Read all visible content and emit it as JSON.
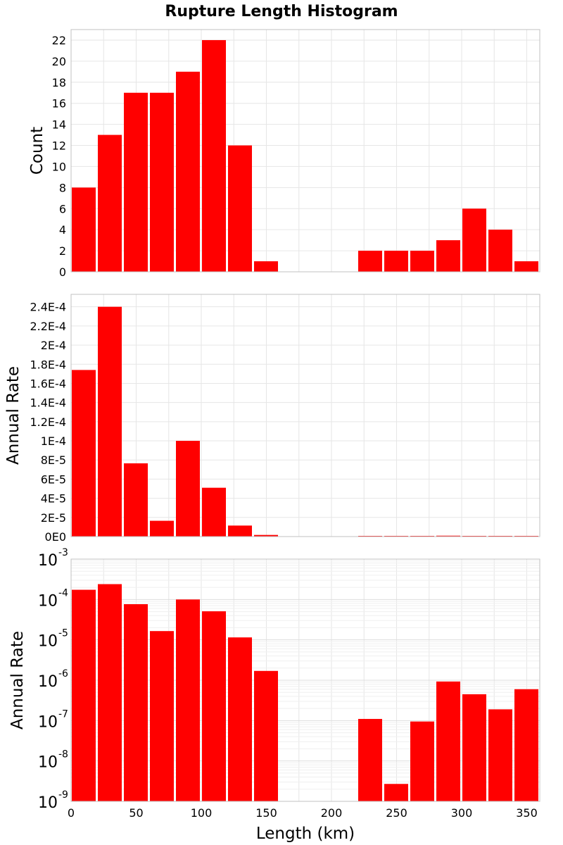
{
  "chart_data": [
    {
      "type": "bar",
      "title": "Rupture Length Histogram",
      "ylabel": "Count",
      "x": [
        10,
        30,
        50,
        70,
        90,
        110,
        130,
        150,
        170,
        190,
        210,
        230,
        250,
        270,
        290,
        310,
        330,
        350
      ],
      "values": [
        8,
        13,
        17,
        17,
        19,
        22,
        12,
        1,
        0,
        0,
        0,
        2,
        2,
        2,
        3,
        6,
        4,
        1
      ],
      "xlim": [
        0,
        360
      ],
      "ylim": [
        0,
        23
      ],
      "yticks": [
        0,
        2,
        4,
        6,
        8,
        10,
        12,
        14,
        16,
        18,
        20,
        22
      ],
      "ytick_labels": [
        "0",
        "2",
        "4",
        "6",
        "8",
        "10",
        "12",
        "14",
        "16",
        "18",
        "20",
        "22"
      ],
      "grid": true
    },
    {
      "type": "bar",
      "ylabel": "Annual Rate",
      "x": [
        10,
        30,
        50,
        70,
        90,
        110,
        130,
        150,
        170,
        190,
        210,
        230,
        250,
        270,
        290,
        310,
        330,
        350
      ],
      "values": [
        0.000174,
        0.00024,
        7.65e-05,
        1.65e-05,
        0.0001,
        5.1e-05,
        1.15e-05,
        1.7e-06,
        0,
        0,
        0,
        1.1e-07,
        2.7e-09,
        9.5e-08,
        9.3e-07,
        4.5e-07,
        1.9e-07,
        6e-07
      ],
      "xlim": [
        0,
        360
      ],
      "ylim": [
        0,
        0.000253
      ],
      "yticks": [
        0,
        2e-05,
        4e-05,
        6e-05,
        8e-05,
        0.0001,
        0.00012,
        0.00014,
        0.00016,
        0.00018,
        0.0002,
        0.00022,
        0.00024
      ],
      "ytick_labels": [
        "0E0",
        "2E-5",
        "4E-5",
        "6E-5",
        "8E-5",
        "1E-4",
        "1.2E-4",
        "1.4E-4",
        "1.6E-4",
        "1.8E-4",
        "2E-4",
        "2.2E-4",
        "2.4E-4"
      ],
      "grid": true
    },
    {
      "type": "bar",
      "ylabel": "Annual Rate",
      "xlabel": "Length (km)",
      "yscale": "log",
      "x": [
        10,
        30,
        50,
        70,
        90,
        110,
        130,
        150,
        170,
        190,
        210,
        230,
        250,
        270,
        290,
        310,
        330,
        350
      ],
      "values": [
        0.000174,
        0.00024,
        7.65e-05,
        1.65e-05,
        0.0001,
        5.1e-05,
        1.15e-05,
        1.7e-06,
        0,
        0,
        0,
        1.1e-07,
        2.7e-09,
        9.5e-08,
        9.3e-07,
        4.5e-07,
        1.9e-07,
        6e-07
      ],
      "xlim": [
        0,
        360
      ],
      "ylim_exponents": [
        -9,
        -3
      ],
      "ytick_exponents": [
        -9,
        -8,
        -7,
        -6,
        -5,
        -4,
        -3
      ],
      "ytick_base": "10",
      "xticks": [
        0,
        50,
        100,
        150,
        200,
        250,
        300,
        350
      ],
      "xtick_labels": [
        "0",
        "50",
        "100",
        "150",
        "200",
        "250",
        "300",
        "350"
      ],
      "grid": true
    }
  ],
  "colors": {
    "bar": "#ff0000",
    "grid": "#e6e6e6",
    "frame": "#c0c0c0"
  }
}
